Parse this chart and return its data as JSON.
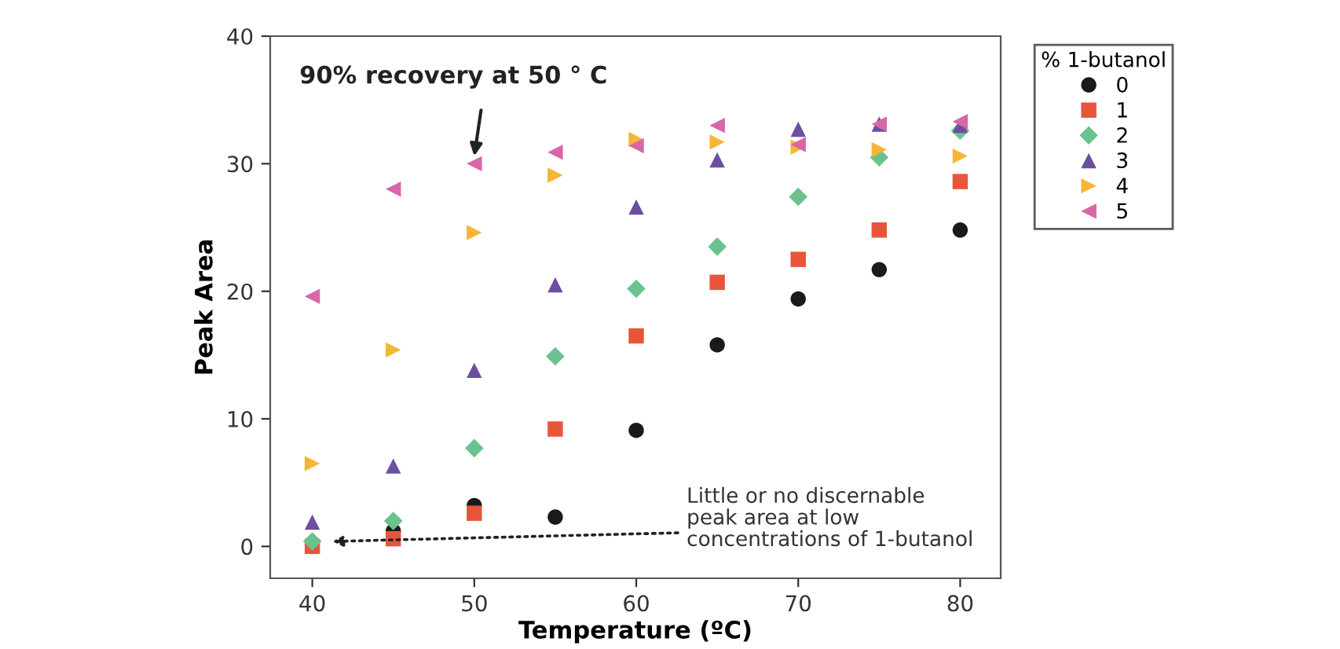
{
  "chart_data": {
    "type": "scatter",
    "xlabel": "Temperature (ºC)",
    "ylabel": "Peak Area",
    "legend_title": "% 1-butanol",
    "legend": "top right",
    "grid": false,
    "x": [
      40,
      45,
      50,
      55,
      60,
      65,
      70,
      75,
      80
    ],
    "xlim": [
      37.4,
      82.5
    ],
    "xticks": [
      40,
      50,
      60,
      70,
      80
    ],
    "ylim": [
      -2.5,
      40
    ],
    "yticks": [
      0,
      10,
      20,
      30,
      40
    ],
    "series": [
      {
        "name": "0",
        "color": "#1a1a1a",
        "marker": "circle",
        "values": [
          null,
          1.2,
          3.2,
          2.3,
          9.1,
          15.8,
          19.4,
          21.7,
          24.8
        ]
      },
      {
        "name": "1",
        "color": "#e8553a",
        "marker": "square",
        "values": [
          0,
          0.6,
          2.6,
          9.2,
          16.5,
          20.7,
          22.5,
          24.8,
          28.6
        ]
      },
      {
        "name": "2",
        "color": "#6cc28e",
        "marker": "diamond",
        "values": [
          0.4,
          2.0,
          7.7,
          14.9,
          20.2,
          23.5,
          27.4,
          30.5,
          32.6
        ]
      },
      {
        "name": "3",
        "color": "#6b4fa0",
        "marker": "triangle",
        "values": [
          1.9,
          6.3,
          13.8,
          20.5,
          26.6,
          30.3,
          32.7,
          33.1,
          33.0
        ]
      },
      {
        "name": "4",
        "color": "#f7b538",
        "marker": "triangle-right",
        "values": [
          6.5,
          15.4,
          24.6,
          29.1,
          31.9,
          31.7,
          31.3,
          31.1,
          30.6
        ]
      },
      {
        "name": "5",
        "color": "#d966a8",
        "marker": "triangle-left",
        "values": [
          19.6,
          28.0,
          30.0,
          30.9,
          31.4,
          33.0,
          31.5,
          33.1,
          33.3
        ]
      }
    ],
    "annotations": [
      {
        "text": "90% recovery at 50 ° C",
        "x": 50,
        "y": 30.6
      },
      "Little or no discernable\npeak area at low\nconcentrations of 1-butanol"
    ]
  }
}
